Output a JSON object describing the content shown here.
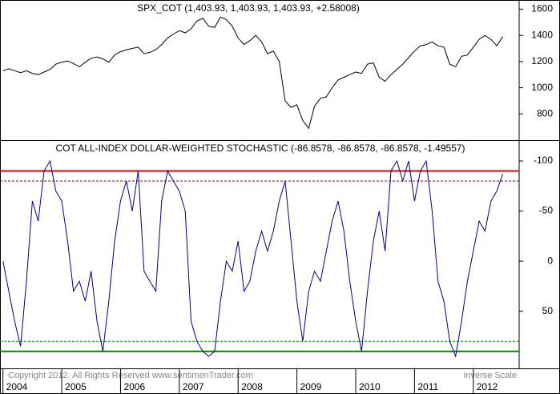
{
  "chart_data": [
    {
      "type": "line",
      "title": "SPX_COT (1,403.93, 1,403.93, 1,403.93, +2.58008)",
      "x": [
        2004,
        2004.1,
        2004.2,
        2004.3,
        2004.4,
        2004.5,
        2004.6,
        2004.7,
        2004.8,
        2004.9,
        2005,
        2005.1,
        2005.2,
        2005.3,
        2005.4,
        2005.5,
        2005.6,
        2005.7,
        2005.8,
        2005.9,
        2006,
        2006.1,
        2006.2,
        2006.3,
        2006.4,
        2006.5,
        2006.6,
        2006.7,
        2006.8,
        2006.9,
        2007,
        2007.1,
        2007.2,
        2007.3,
        2007.4,
        2007.5,
        2007.6,
        2007.7,
        2007.8,
        2007.9,
        2008,
        2008.1,
        2008.2,
        2008.3,
        2008.4,
        2008.5,
        2008.6,
        2008.7,
        2008.8,
        2008.9,
        2009,
        2009.1,
        2009.2,
        2009.3,
        2009.4,
        2009.5,
        2009.6,
        2009.7,
        2009.8,
        2009.9,
        2010,
        2010.1,
        2010.2,
        2010.3,
        2010.4,
        2010.5,
        2010.6,
        2010.7,
        2010.8,
        2010.9,
        2011,
        2011.1,
        2011.2,
        2011.3,
        2011.4,
        2011.5,
        2011.6,
        2011.7,
        2011.8,
        2011.9,
        2012,
        2012.1,
        2012.2,
        2012.3,
        2012.4,
        2012.5
      ],
      "series": [
        {
          "name": "SPX_COT",
          "color": "#000000",
          "values": [
            1130,
            1145,
            1130,
            1115,
            1130,
            1110,
            1100,
            1120,
            1140,
            1180,
            1195,
            1205,
            1185,
            1160,
            1195,
            1225,
            1235,
            1220,
            1195,
            1250,
            1275,
            1290,
            1300,
            1310,
            1260,
            1270,
            1290,
            1330,
            1380,
            1410,
            1435,
            1420,
            1450,
            1510,
            1530,
            1470,
            1460,
            1540,
            1520,
            1470,
            1380,
            1330,
            1360,
            1400,
            1350,
            1260,
            1280,
            1200,
            900,
            850,
            870,
            750,
            690,
            860,
            920,
            930,
            1000,
            1060,
            1080,
            1100,
            1120,
            1110,
            1180,
            1190,
            1080,
            1050,
            1100,
            1140,
            1180,
            1230,
            1280,
            1320,
            1330,
            1350,
            1320,
            1310,
            1180,
            1160,
            1240,
            1250,
            1310,
            1370,
            1400,
            1370,
            1320,
            1390
          ]
        }
      ],
      "xlim": [
        2003.95,
        2012.78
      ],
      "ylim": [
        600,
        1670
      ],
      "yticks": [
        800,
        1000,
        1200,
        1400,
        1600
      ]
    },
    {
      "type": "line",
      "title": "COT ALL-INDEX DOLLAR-WEIGHTED STOCHASTIC (-86.8578, -86.8578, -86.8578, -1.49557)",
      "inverse": true,
      "inverse_label": "Inverse Scale",
      "annotation": "Copyright 2012, All Rights Reserved  www.sentimenTrader.com",
      "series": [
        {
          "name": "COT ALL-INDEX DOLLAR-WEIGHTED STOCHASTIC",
          "color": "#00008b",
          "values": [
            0,
            30,
            60,
            85,
            20,
            -60,
            -40,
            -90,
            -100,
            -70,
            -60,
            -20,
            30,
            20,
            40,
            10,
            60,
            90,
            40,
            -20,
            -60,
            -80,
            -50,
            -90,
            10,
            20,
            30,
            -60,
            -90,
            -80,
            -70,
            -50,
            60,
            80,
            90,
            95,
            90,
            40,
            0,
            10,
            -20,
            30,
            20,
            -10,
            -30,
            -10,
            -30,
            -60,
            -80,
            -20,
            40,
            80,
            30,
            10,
            20,
            -10,
            -40,
            -60,
            -30,
            20,
            60,
            90,
            30,
            -20,
            -50,
            -10,
            -90,
            -100,
            -80,
            -100,
            -60,
            -90,
            -100,
            -50,
            20,
            40,
            80,
            95,
            60,
            20,
            -10,
            -40,
            -30,
            -60,
            -70,
            -87
          ]
        }
      ],
      "hlines": [
        {
          "value": -90,
          "color": "#dd0000",
          "dashed": false
        },
        {
          "value": -80,
          "color": "#aa0000",
          "dashed": true
        },
        {
          "value": 80,
          "color": "#008800",
          "dashed": true
        },
        {
          "value": 90,
          "color": "#008800",
          "dashed": false
        }
      ],
      "ylim": [
        -120,
        107
      ],
      "yticks": [
        -100,
        -50,
        0,
        50
      ],
      "xticks": [
        2004,
        2005,
        2006,
        2007,
        2008,
        2009,
        2010,
        2011,
        2012
      ]
    }
  ]
}
